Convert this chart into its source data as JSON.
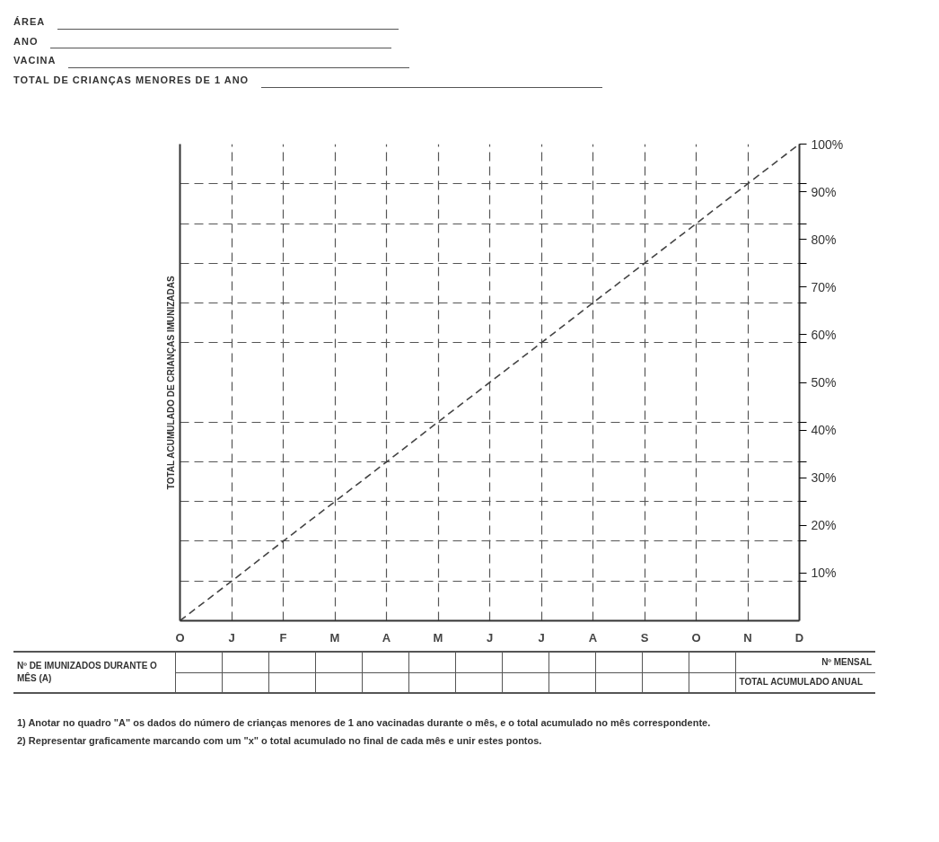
{
  "chart_data": {
    "type": "line",
    "ylabel": "TOTAL ACUMULADO DE CRIANÇAS IMUNIZADAS",
    "annotations": [
      "ÁREA",
      "ANO",
      "VACINA",
      "TOTAL DE CRIANÇAS MENORES DE 1 ANO",
      "Nº DE IMUNIZADOS DURANTE O MÊS (A)",
      "Nº MENSAL",
      "TOTAL ACUMULADO ANUAL",
      "1) Anotar no quadro \"A\" os dados do número de crianças menores de 1 ano vacinadas durante o mês, e o total acumulado no mês correspondente.",
      "2) Representar graficamente marcando com um \"x\" o total acumulado no final de cada mês e unir estes pontos."
    ],
    "categories": [
      "O",
      "J",
      "F",
      "M",
      "A",
      "M",
      "J",
      "J",
      "A",
      "S",
      "O",
      "N",
      "D"
    ],
    "series": [
      {
        "color": "#444444",
        "values": [
          0,
          8.3,
          16.7,
          25,
          33.3,
          41.7,
          50,
          58.3,
          66.7,
          75,
          83.3,
          91.7,
          100
        ]
      }
    ],
    "line_style": "dashed",
    "ylim": [
      0,
      100
    ],
    "yticks": [
      {
        "value": 10,
        "label": "10%"
      },
      {
        "value": 20,
        "label": "20%"
      },
      {
        "value": 30,
        "label": "30%"
      },
      {
        "value": 40,
        "label": "40%"
      },
      {
        "value": 50,
        "label": "50%"
      },
      {
        "value": 60,
        "label": "60%"
      },
      {
        "value": 70,
        "label": "70%"
      },
      {
        "value": 80,
        "label": "80%"
      },
      {
        "value": 90,
        "label": "90%"
      },
      {
        "value": 100,
        "label": "100%"
      },
      {
        "value": 8.3,
        "label": null
      },
      {
        "value": 16.7,
        "label": null
      },
      {
        "value": 25,
        "label": null
      },
      {
        "value": 33.3,
        "label": null
      },
      {
        "value": 41.7,
        "label": null
      },
      {
        "value": 58.3,
        "label": null
      },
      {
        "value": 66.7,
        "label": null
      },
      {
        "value": 75,
        "label": null
      },
      {
        "value": 83.3,
        "label": null
      },
      {
        "value": 91.7,
        "label": null
      }
    ],
    "grid": true
  }
}
